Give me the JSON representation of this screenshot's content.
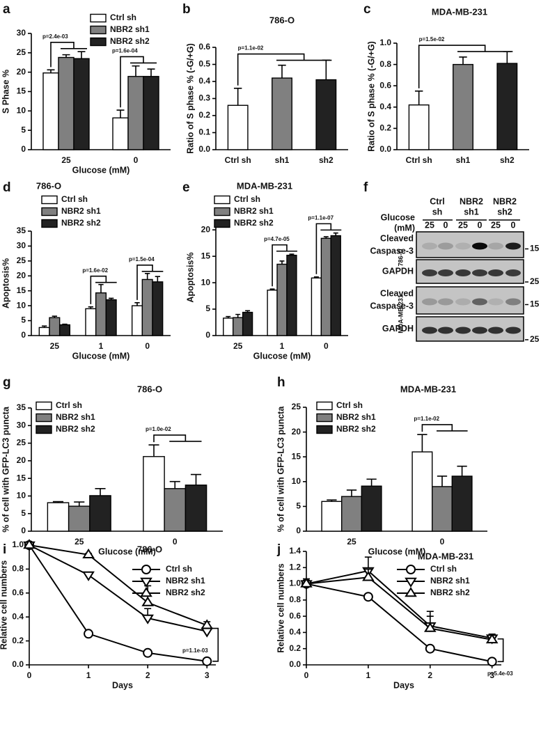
{
  "chart_data": [
    {
      "type": "bar",
      "panel_label": "a",
      "y_label": "S Phase %",
      "x_label": "Glucose (mM)",
      "categories": [
        "25",
        "0"
      ],
      "series": [
        {
          "name": "Ctrl sh",
          "color": "#ffffff",
          "values": [
            19.8,
            8.2
          ],
          "errors": [
            0.8,
            2.0
          ]
        },
        {
          "name": "NBR2 sh1",
          "color": "#808080",
          "values": [
            23.8,
            18.9
          ],
          "errors": [
            0.7,
            2.7
          ]
        },
        {
          "name": "NBR2 sh2",
          "color": "#222222",
          "values": [
            23.5,
            18.9
          ],
          "errors": [
            1.8,
            1.9
          ]
        }
      ],
      "ylim": [
        0,
        30
      ],
      "yticks": [
        0,
        5,
        10,
        15,
        20,
        25,
        30
      ],
      "annotations": [
        "p=2.4e-03",
        "p=1.6e-04"
      ]
    },
    {
      "type": "bar",
      "panel_label": "b",
      "title": "786-O",
      "y_label": "Ratio of S phase % (-G/+G)",
      "categories": [
        "Ctrl sh",
        "sh1",
        "sh2"
      ],
      "values": [
        0.26,
        0.42,
        0.41
      ],
      "errors": [
        0.1,
        0.075,
        0.115
      ],
      "colors": [
        "#ffffff",
        "#808080",
        "#222222"
      ],
      "ylim": [
        0,
        0.6
      ],
      "yticks": [
        {
          "value": 0,
          "label": "0.0"
        },
        0.1,
        0.2,
        0.3,
        0.4,
        0.5,
        0.6
      ],
      "annotations": [
        "p=1.1e-02"
      ]
    },
    {
      "type": "bar",
      "panel_label": "c",
      "title": "MDA-MB-231",
      "y_label": "Ratio of S phase % (-G/+G)",
      "categories": [
        "Ctrl sh",
        "sh1",
        "sh2"
      ],
      "values": [
        0.42,
        0.8,
        0.81
      ],
      "errors": [
        0.13,
        0.07,
        0.11
      ],
      "colors": [
        "#ffffff",
        "#808080",
        "#222222"
      ],
      "ylim": [
        0,
        1.0
      ],
      "yticks": [
        {
          "value": 0,
          "label": "0.0"
        },
        0.2,
        0.4,
        0.6,
        0.8,
        {
          "value": 1,
          "label": "1.0"
        }
      ],
      "annotations": [
        "p=1.5e-02"
      ]
    },
    {
      "type": "bar",
      "panel_label": "d",
      "title": "786-O",
      "y_label": "Apoptosis%",
      "x_label": "Glucose (mM)",
      "categories": [
        "25",
        "1",
        "0"
      ],
      "series": [
        {
          "name": "Ctrl sh",
          "color": "#ffffff",
          "values": [
            2.7,
            9.0,
            10.0
          ],
          "errors": [
            0.5,
            0.6,
            1.0
          ]
        },
        {
          "name": "NBR2 sh1",
          "color": "#808080",
          "values": [
            6.0,
            14.3,
            18.8
          ],
          "errors": [
            0.5,
            2.8,
            2.0
          ]
        },
        {
          "name": "NBR2 sh2",
          "color": "#222222",
          "values": [
            3.6,
            12.0,
            18.0
          ],
          "errors": [
            0.2,
            0.5,
            1.8
          ]
        }
      ],
      "ylim": [
        0,
        35
      ],
      "yticks": [
        0,
        5,
        10,
        15,
        20,
        25,
        30,
        35
      ],
      "annotations": [
        "p=1.6e-02",
        "p=1.5e-04"
      ]
    },
    {
      "type": "bar",
      "panel_label": "e",
      "title": "MDA-MB-231",
      "y_label": "Apoptosis%",
      "x_label": "Glucose (mM)",
      "categories": [
        "25",
        "1",
        "0"
      ],
      "series": [
        {
          "name": "Ctrl sh",
          "color": "#ffffff",
          "values": [
            3.3,
            8.6,
            10.9
          ],
          "errors": [
            0.3,
            0.2,
            0.2
          ]
        },
        {
          "name": "NBR2 sh1",
          "color": "#808080",
          "values": [
            3.4,
            13.5,
            18.4
          ],
          "errors": [
            0.6,
            0.6,
            0.3
          ]
        },
        {
          "name": "NBR2 sh2",
          "color": "#222222",
          "values": [
            4.4,
            15.2,
            18.9
          ],
          "errors": [
            0.3,
            0.2,
            0.5
          ]
        }
      ],
      "ylim": [
        0,
        22
      ],
      "yticks": [
        0,
        5,
        10,
        15,
        20
      ],
      "annotations": [
        "p=4.7e-05",
        "p=1.1e-07"
      ]
    },
    {
      "type": "bar",
      "panel_label": "g",
      "title": "786-O",
      "y_label": "% of cell with GFP-LC3 puncta",
      "x_label": "Glucose (mM)",
      "categories": [
        "25",
        "0"
      ],
      "series": [
        {
          "name": "Ctrl sh",
          "color": "#ffffff",
          "values": [
            8.1,
            21.2
          ],
          "errors": [
            0.3,
            3.3
          ]
        },
        {
          "name": "NBR2 sh1",
          "color": "#808080",
          "values": [
            7.1,
            12.1
          ],
          "errors": [
            1.2,
            2.0
          ]
        },
        {
          "name": "NBR2 sh2",
          "color": "#222222",
          "values": [
            10.1,
            13.1
          ],
          "errors": [
            2.0,
            3.0
          ]
        }
      ],
      "ylim": [
        0,
        35
      ],
      "yticks": [
        0,
        5,
        10,
        15,
        20,
        25,
        30,
        35
      ],
      "annotations": [
        "p=1.0e-02"
      ]
    },
    {
      "type": "bar",
      "panel_label": "h",
      "title": "MDA-MB-231",
      "y_label": "% of cell with GFP-LC3 puncta",
      "x_label": "Glucose (mM)",
      "categories": [
        "25",
        "0"
      ],
      "series": [
        {
          "name": "Ctrl sh",
          "color": "#ffffff",
          "values": [
            6.0,
            16.0
          ],
          "errors": [
            0.3,
            3.5
          ]
        },
        {
          "name": "NBR2 sh1",
          "color": "#808080",
          "values": [
            7.0,
            9.0
          ],
          "errors": [
            1.3,
            2.1
          ]
        },
        {
          "name": "NBR2 sh2",
          "color": "#222222",
          "values": [
            9.1,
            11.1
          ],
          "errors": [
            1.4,
            2.0
          ]
        }
      ],
      "ylim": [
        0,
        25
      ],
      "yticks": [
        0,
        5,
        10,
        15,
        20,
        25
      ],
      "annotations": [
        "p=1.1e-02"
      ]
    },
    {
      "type": "line",
      "panel_label": "i",
      "title": "786-O",
      "y_label": "Relative cell numbers",
      "x_label": "Days",
      "x": [
        0,
        1,
        2,
        3
      ],
      "series": [
        {
          "name": "Ctrl sh",
          "marker": "circle",
          "values": [
            1.0,
            0.26,
            0.1,
            0.03
          ],
          "errors": [
            0,
            0.01,
            0.01,
            0.01
          ]
        },
        {
          "name": "NBR2 sh1",
          "marker": "triangle-down",
          "values": [
            1.0,
            0.75,
            0.39,
            0.28
          ],
          "errors": [
            0,
            0.02,
            0.08,
            0.03
          ]
        },
        {
          "name": "NBR2 sh2",
          "marker": "triangle-up",
          "values": [
            1.0,
            0.92,
            0.52,
            0.33
          ],
          "errors": [
            0,
            0.01,
            0.14,
            0.03
          ]
        }
      ],
      "xlim": [
        0,
        3.15
      ],
      "xticks": [
        0,
        1,
        2,
        3
      ],
      "ylim": [
        0,
        1.0
      ],
      "yticks": [
        {
          "value": 0,
          "label": "0.0"
        },
        0.2,
        0.4,
        0.6,
        0.8,
        {
          "value": 1,
          "label": "1.0"
        }
      ],
      "annotations": [
        "p=1.1e-03"
      ]
    },
    {
      "type": "line",
      "panel_label": "j",
      "title": "MDA-MB-231",
      "y_label": "Relative cell numbers",
      "x_label": "Days",
      "x": [
        0,
        1,
        2,
        3
      ],
      "series": [
        {
          "name": "Ctrl sh",
          "marker": "circle",
          "values": [
            1.0,
            0.84,
            0.2,
            0.04
          ],
          "errors": [
            0.04,
            0.02,
            0.02,
            0.01
          ]
        },
        {
          "name": "NBR2 sh1",
          "marker": "triangle-down",
          "values": [
            1.0,
            1.16,
            0.48,
            0.33
          ],
          "errors": [
            0.06,
            0.17,
            0.18,
            0.05
          ]
        },
        {
          "name": "NBR2 sh2",
          "marker": "triangle-up",
          "values": [
            1.0,
            1.08,
            0.45,
            0.31
          ],
          "errors": [
            0.06,
            0.1,
            0.15,
            0.06
          ]
        }
      ],
      "xlim": [
        0,
        3.15
      ],
      "xticks": [
        0,
        1,
        2,
        3
      ],
      "ylim": [
        0,
        1.4
      ],
      "yticks": [
        {
          "value": 0,
          "label": "0.0"
        },
        0.2,
        0.4,
        0.6,
        0.8,
        {
          "value": 1,
          "label": "1.0"
        },
        1.2,
        1.4
      ],
      "annotations": [
        "p=5.4e-03"
      ]
    }
  ],
  "blot": {
    "panel_label": "f",
    "glucose_label": "Glucose",
    "unit_label": "(mM)",
    "groups": [
      {
        "lines": [
          "Ctrl",
          "sh"
        ]
      },
      {
        "lines": [
          "NBR2",
          "sh1"
        ]
      },
      {
        "lines": [
          "NBR2",
          "sh2"
        ]
      }
    ],
    "lanes": [
      "25",
      "0",
      "25",
      "0",
      "25",
      "0"
    ],
    "panels": [
      {
        "cell_line": "786-O",
        "rows": [
          {
            "label_lines": [
              "Cleaved",
              "Caspase-3"
            ],
            "marker": "15"
          },
          {
            "label_lines": [
              "GAPDH"
            ],
            "marker": "25"
          }
        ]
      },
      {
        "cell_line": "MDA-MB-231",
        "rows": [
          {
            "label_lines": [
              "Cleaved",
              "Caspase-3"
            ],
            "marker": "15"
          },
          {
            "label_lines": [
              "GAPDH"
            ],
            "marker": "25"
          }
        ]
      }
    ]
  }
}
